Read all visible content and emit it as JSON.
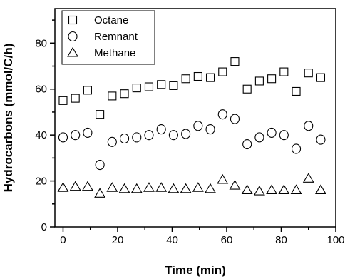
{
  "chart_data": {
    "type": "scatter",
    "title": "",
    "xlabel": "Time (min)",
    "ylabel": "Hydrocarbons (mmol/C/h)",
    "xlim": [
      -3,
      100
    ],
    "ylim": [
      0,
      95
    ],
    "xticks": [
      0,
      20,
      40,
      60,
      80,
      100
    ],
    "yticks": [
      0,
      20,
      40,
      60,
      80
    ],
    "xticks_minor": [
      10,
      30,
      50,
      70,
      90
    ],
    "yticks_minor": [
      10,
      30,
      50,
      70,
      90
    ],
    "grid": false,
    "legend_position": "top-left",
    "series": [
      {
        "name": "Octane",
        "marker": "square",
        "x": [
          0,
          4.5,
          9,
          13.5,
          18,
          22.5,
          27,
          31.5,
          36,
          40.5,
          45,
          49.5,
          54,
          58.5,
          63,
          67.5,
          72,
          76.5,
          81,
          85.5,
          90,
          94.5
        ],
        "values": [
          55,
          56,
          59.5,
          49,
          57,
          58,
          60.5,
          61,
          62,
          61.5,
          64.5,
          65.5,
          65,
          67.5,
          72,
          60,
          63.5,
          64.5,
          67.5,
          59,
          67,
          65
        ]
      },
      {
        "name": "Remnant",
        "marker": "circle",
        "x": [
          0,
          4.5,
          9,
          13.5,
          18,
          22.5,
          27,
          31.5,
          36,
          40.5,
          45,
          49.5,
          54,
          58.5,
          63,
          67.5,
          72,
          76.5,
          81,
          85.5,
          90,
          94.5
        ],
        "values": [
          39,
          40,
          41,
          27,
          37,
          38.5,
          39,
          40,
          42.5,
          40,
          40.5,
          44,
          42.5,
          49,
          47,
          36,
          39,
          41,
          40,
          34,
          44,
          38
        ]
      },
      {
        "name": "Methane",
        "marker": "triangle",
        "x": [
          0,
          4.5,
          9,
          13.5,
          18,
          22.5,
          27,
          31.5,
          36,
          40.5,
          45,
          49.5,
          54,
          58.5,
          63,
          67.5,
          72,
          76.5,
          81,
          85.5,
          90,
          94.5
        ],
        "values": [
          17,
          17.5,
          17.5,
          14.5,
          17,
          16.5,
          16.5,
          17,
          17,
          16.5,
          16.5,
          17,
          16.5,
          20.5,
          18,
          16,
          15.5,
          16,
          16,
          16,
          21,
          16
        ]
      }
    ]
  }
}
